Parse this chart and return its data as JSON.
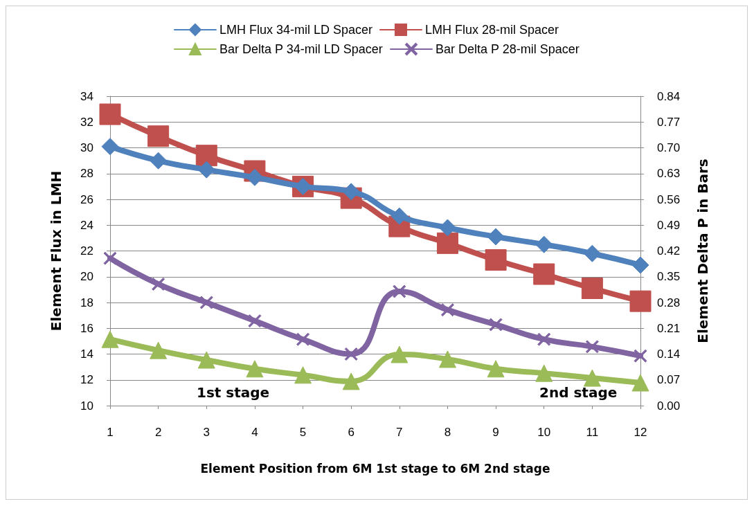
{
  "chart_data": {
    "type": "line",
    "xlabel": "Element Position from 6M 1st stage to 6M 2nd stage",
    "ylabel": "Element Flux in LMH",
    "y2label": "Element Delta P in Bars",
    "categories": [
      "1",
      "2",
      "3",
      "4",
      "5",
      "6",
      "7",
      "8",
      "9",
      "10",
      "11",
      "12"
    ],
    "series": [
      {
        "name": "LMH Flux 34-mil LD Spacer",
        "color": "#4f81bd",
        "marker": "diamond",
        "values": [
          30.1,
          29.0,
          28.3,
          27.7,
          27.0,
          26.6,
          24.7,
          23.8,
          23.1,
          22.5,
          21.8,
          20.9
        ]
      },
      {
        "name": "LMH Flux 28-mil Spacer",
        "color": "#c0504d",
        "marker": "square",
        "values": [
          32.6,
          30.9,
          29.4,
          28.2,
          27.0,
          26.1,
          23.9,
          22.6,
          21.3,
          20.2,
          19.1,
          18.1
        ]
      },
      {
        "name": "Bar Delta P 34-mil LD Spacer",
        "color": "#9bbb59",
        "marker": "triangle",
        "axis": "y2",
        "values": [
          0.18,
          0.15,
          0.124,
          0.1,
          0.083,
          0.066,
          0.139,
          0.126,
          0.1,
          0.088,
          0.075,
          0.062
        ]
      },
      {
        "name": "Bar Delta P 28-mil Spacer",
        "color": "#8064a2",
        "marker": "cross",
        "axis": "y2",
        "values": [
          0.4,
          0.33,
          0.28,
          0.23,
          0.18,
          0.14,
          0.31,
          0.26,
          0.22,
          0.18,
          0.16,
          0.135
        ]
      }
    ],
    "ylim": [
      10,
      34
    ],
    "yticks": [
      10,
      12,
      14,
      16,
      18,
      20,
      22,
      24,
      26,
      28,
      30,
      32,
      34
    ],
    "y2lim": [
      0,
      0.84
    ],
    "y2ticks": [
      {
        "value": 0,
        "label": "0.00"
      },
      0.07,
      0.14,
      0.21,
      0.28,
      0.35,
      0.42,
      0.49,
      0.56,
      0.63,
      {
        "value": 0.7,
        "label": "0.70"
      },
      0.77,
      0.84
    ],
    "annotations": [
      "1st stage",
      "2nd stage"
    ],
    "grid": "y",
    "legend": "top",
    "line_style": "solid"
  }
}
